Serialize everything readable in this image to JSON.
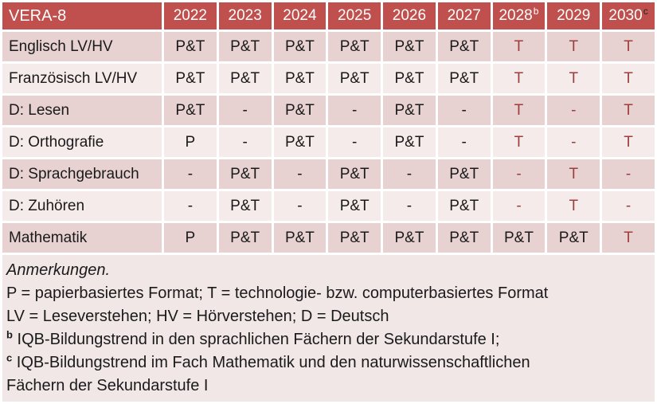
{
  "table": {
    "title_cell": "VERA-8",
    "columns": [
      {
        "year": "2022",
        "sup": ""
      },
      {
        "year": "2023",
        "sup": ""
      },
      {
        "year": "2024",
        "sup": ""
      },
      {
        "year": "2025",
        "sup": ""
      },
      {
        "year": "2026",
        "sup": ""
      },
      {
        "year": "2027",
        "sup": ""
      },
      {
        "year": "2028",
        "sup": "b"
      },
      {
        "year": "2029",
        "sup": ""
      },
      {
        "year": "2030",
        "sup": "c"
      }
    ],
    "rows": [
      {
        "label": "Englisch LV/HV",
        "cells": [
          {
            "t": "P&T",
            "red": false
          },
          {
            "t": "P&T",
            "red": false
          },
          {
            "t": "P&T",
            "red": false
          },
          {
            "t": "P&T",
            "red": false
          },
          {
            "t": "P&T",
            "red": false
          },
          {
            "t": "P&T",
            "red": false
          },
          {
            "t": "T",
            "red": true
          },
          {
            "t": "T",
            "red": true
          },
          {
            "t": "T",
            "red": true
          }
        ]
      },
      {
        "label": "Französisch LV/HV",
        "cells": [
          {
            "t": "P&T",
            "red": false
          },
          {
            "t": "P&T",
            "red": false
          },
          {
            "t": "P&T",
            "red": false
          },
          {
            "t": "P&T",
            "red": false
          },
          {
            "t": "P&T",
            "red": false
          },
          {
            "t": "P&T",
            "red": false
          },
          {
            "t": "T",
            "red": true
          },
          {
            "t": "T",
            "red": true
          },
          {
            "t": "T",
            "red": true
          }
        ]
      },
      {
        "label": "D: Lesen",
        "cells": [
          {
            "t": "P&T",
            "red": false
          },
          {
            "t": "-",
            "red": false
          },
          {
            "t": "P&T",
            "red": false
          },
          {
            "t": "-",
            "red": false
          },
          {
            "t": "P&T",
            "red": false
          },
          {
            "t": "-",
            "red": false
          },
          {
            "t": "T",
            "red": true
          },
          {
            "t": "-",
            "red": true
          },
          {
            "t": "T",
            "red": true
          }
        ]
      },
      {
        "label": "D: Orthografie",
        "cells": [
          {
            "t": "P",
            "red": false
          },
          {
            "t": "-",
            "red": false
          },
          {
            "t": "P&T",
            "red": false
          },
          {
            "t": "-",
            "red": false
          },
          {
            "t": "P&T",
            "red": false
          },
          {
            "t": "-",
            "red": false
          },
          {
            "t": "T",
            "red": true
          },
          {
            "t": "-",
            "red": true
          },
          {
            "t": "T",
            "red": true
          }
        ]
      },
      {
        "label": "D: Sprachgebrauch",
        "cells": [
          {
            "t": "-",
            "red": false
          },
          {
            "t": "P&T",
            "red": false
          },
          {
            "t": "-",
            "red": false
          },
          {
            "t": "P&T",
            "red": false
          },
          {
            "t": "-",
            "red": false
          },
          {
            "t": "P&T",
            "red": false
          },
          {
            "t": "-",
            "red": true
          },
          {
            "t": "T",
            "red": true
          },
          {
            "t": "-",
            "red": true
          }
        ]
      },
      {
        "label": "D: Zuhören",
        "cells": [
          {
            "t": "-",
            "red": false
          },
          {
            "t": "P&T",
            "red": false
          },
          {
            "t": "-",
            "red": false
          },
          {
            "t": "P&T",
            "red": false
          },
          {
            "t": "-",
            "red": false
          },
          {
            "t": "P&T",
            "red": false
          },
          {
            "t": "-",
            "red": true
          },
          {
            "t": "T",
            "red": true
          },
          {
            "t": "-",
            "red": true
          }
        ]
      },
      {
        "label": "Mathematik",
        "cells": [
          {
            "t": "P",
            "red": false
          },
          {
            "t": "P&T",
            "red": false
          },
          {
            "t": "P&T",
            "red": false
          },
          {
            "t": "P&T",
            "red": false
          },
          {
            "t": "P&T",
            "red": false
          },
          {
            "t": "P&T",
            "red": false
          },
          {
            "t": "P&T",
            "red": false
          },
          {
            "t": "P&T",
            "red": false
          },
          {
            "t": "T",
            "red": true
          }
        ]
      }
    ]
  },
  "notes": {
    "heading": "Anmerkungen.",
    "line1": "P = papierbasiertes Format; T = technologie- bzw. computerbasiertes Format",
    "line2": "LV = Leseverstehen; HV = Hörverstehen; D = Deutsch",
    "note_b": {
      "sup": "b",
      "text": "IQB-Bildungstrend in den sprachlichen Fächern der Sekundarstufe I;"
    },
    "note_c": {
      "sup": "c",
      "text": "IQB-Bildungstrend im Fach Mathematik und den naturwissenschaftlichen",
      "text2": "Fächern der Sekundarstufe I"
    }
  },
  "colors": {
    "header_bg": "#C0504D",
    "band_dark": "#E8D2D1",
    "band_light": "#F5EBEA",
    "notes_bg": "#F1E7E7",
    "red_text": "#9E3E3C",
    "header_text": "#FFFFFF",
    "body_text": "#1A1A1A",
    "sup_b": "#FFFFFF",
    "sup_c": "#262020"
  }
}
